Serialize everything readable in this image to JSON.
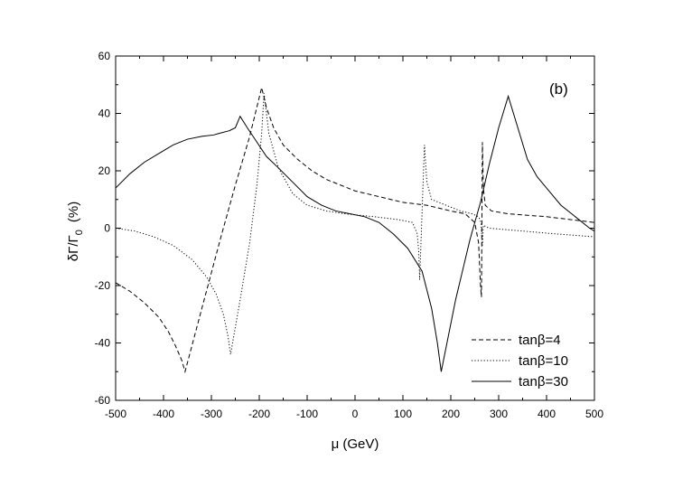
{
  "chart_data": {
    "type": "line",
    "panel_label": "(b)",
    "xlabel": "μ (GeV)",
    "ylabel": "δΓ/Γ",
    "ylabel_sub": "0",
    "ylabel_unit": "(%)",
    "xlim": [
      -500,
      500
    ],
    "ylim": [
      -60,
      60
    ],
    "x_ticks": [
      -500,
      -400,
      -300,
      -200,
      -100,
      0,
      100,
      200,
      300,
      400,
      500
    ],
    "y_ticks": [
      -60,
      -40,
      -20,
      0,
      20,
      40,
      60
    ],
    "legend_position": "bottom-right",
    "series": [
      {
        "name": "tanβ=4",
        "dash": "dashed",
        "color": "#000000",
        "points": [
          [
            -500,
            -19
          ],
          [
            -470,
            -22
          ],
          [
            -440,
            -26
          ],
          [
            -410,
            -31
          ],
          [
            -390,
            -36
          ],
          [
            -375,
            -41
          ],
          [
            -362,
            -46
          ],
          [
            -355,
            -50
          ],
          [
            -320,
            -28
          ],
          [
            -280,
            -3
          ],
          [
            -250,
            15
          ],
          [
            -220,
            32
          ],
          [
            -195,
            49
          ],
          [
            -185,
            42
          ],
          [
            -170,
            35
          ],
          [
            -150,
            29
          ],
          [
            -120,
            24
          ],
          [
            -90,
            20
          ],
          [
            -60,
            17
          ],
          [
            -30,
            15
          ],
          [
            0,
            13
          ],
          [
            50,
            11
          ],
          [
            100,
            9
          ],
          [
            150,
            8
          ],
          [
            200,
            6
          ],
          [
            230,
            5
          ],
          [
            250,
            2
          ],
          [
            258,
            -5
          ],
          [
            262,
            -20
          ],
          [
            264,
            -24
          ],
          [
            266,
            30
          ],
          [
            268,
            14
          ],
          [
            272,
            8
          ],
          [
            285,
            6
          ],
          [
            320,
            5
          ],
          [
            400,
            4
          ],
          [
            500,
            2
          ]
        ]
      },
      {
        "name": "tanβ=10",
        "dash": "dotted",
        "color": "#000000",
        "points": [
          [
            -500,
            0
          ],
          [
            -460,
            -1
          ],
          [
            -420,
            -3
          ],
          [
            -380,
            -6
          ],
          [
            -340,
            -11
          ],
          [
            -310,
            -17
          ],
          [
            -290,
            -23
          ],
          [
            -275,
            -30
          ],
          [
            -265,
            -38
          ],
          [
            -260,
            -44
          ],
          [
            -240,
            -25
          ],
          [
            -220,
            -5
          ],
          [
            -205,
            15
          ],
          [
            -195,
            33
          ],
          [
            -190,
            47
          ],
          [
            -180,
            33
          ],
          [
            -160,
            21
          ],
          [
            -130,
            12
          ],
          [
            -100,
            8
          ],
          [
            -60,
            6
          ],
          [
            -20,
            5
          ],
          [
            40,
            4
          ],
          [
            90,
            3
          ],
          [
            120,
            2
          ],
          [
            130,
            -2
          ],
          [
            133,
            -8
          ],
          [
            135,
            -18
          ],
          [
            145,
            29
          ],
          [
            150,
            16
          ],
          [
            160,
            10
          ],
          [
            190,
            8
          ],
          [
            220,
            6
          ],
          [
            245,
            5
          ],
          [
            258,
            4
          ],
          [
            263,
            2
          ],
          [
            266,
            -6
          ],
          [
            268,
            1
          ],
          [
            280,
            0
          ],
          [
            350,
            -1
          ],
          [
            420,
            -2
          ],
          [
            500,
            -3
          ]
        ]
      },
      {
        "name": "tanβ=30",
        "dash": "solid",
        "color": "#000000",
        "points": [
          [
            -500,
            14
          ],
          [
            -470,
            19
          ],
          [
            -440,
            23
          ],
          [
            -410,
            26
          ],
          [
            -380,
            29
          ],
          [
            -350,
            31
          ],
          [
            -320,
            32
          ],
          [
            -295,
            32.5
          ],
          [
            -285,
            33
          ],
          [
            -262,
            34
          ],
          [
            -250,
            35
          ],
          [
            -240,
            39
          ],
          [
            -225,
            35
          ],
          [
            -205,
            30
          ],
          [
            -185,
            25
          ],
          [
            -160,
            21
          ],
          [
            -130,
            16
          ],
          [
            -100,
            11
          ],
          [
            -70,
            8
          ],
          [
            -40,
            6
          ],
          [
            -10,
            5
          ],
          [
            20,
            4
          ],
          [
            50,
            2
          ],
          [
            80,
            -2
          ],
          [
            110,
            -7
          ],
          [
            140,
            -15
          ],
          [
            160,
            -28
          ],
          [
            172,
            -40
          ],
          [
            180,
            -50
          ],
          [
            210,
            -25
          ],
          [
            240,
            -4
          ],
          [
            262,
            9
          ],
          [
            280,
            22
          ],
          [
            300,
            35
          ],
          [
            320,
            46
          ],
          [
            340,
            35
          ],
          [
            360,
            24
          ],
          [
            380,
            18
          ],
          [
            400,
            14
          ],
          [
            430,
            8
          ],
          [
            460,
            4
          ],
          [
            490,
            0
          ],
          [
            500,
            -1
          ]
        ]
      }
    ]
  }
}
